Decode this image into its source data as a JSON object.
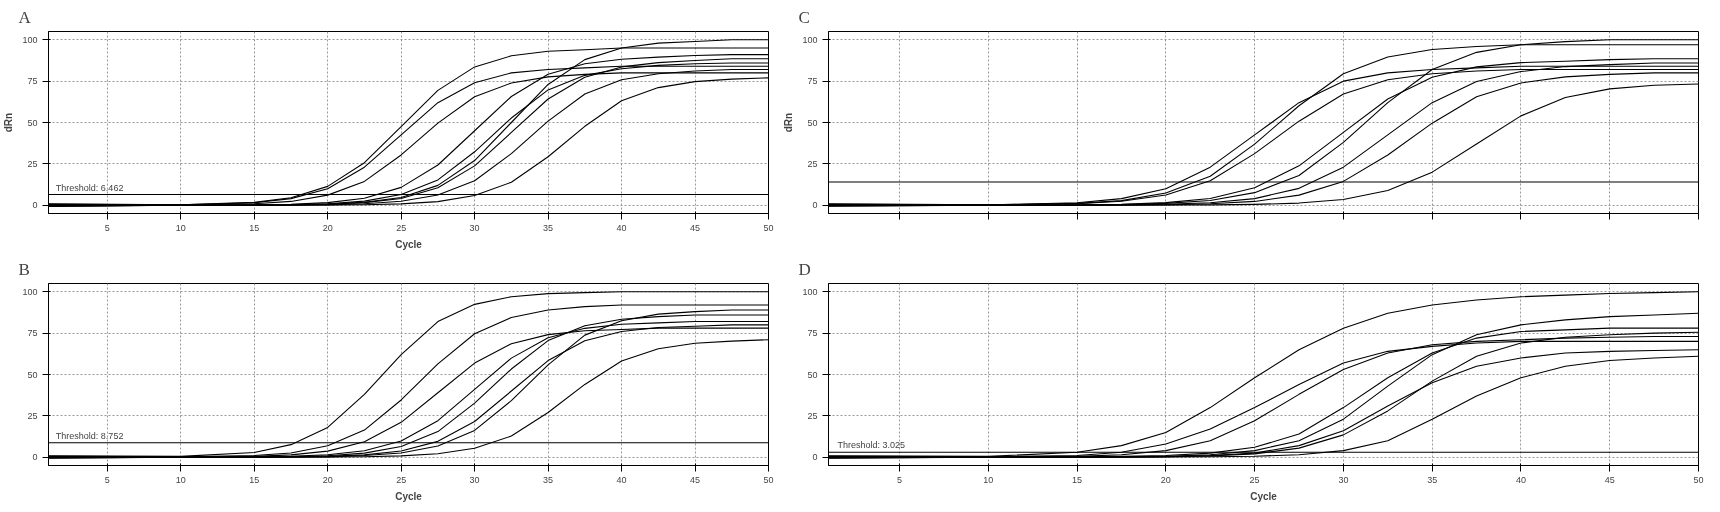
{
  "chart_data": [
    {
      "type": "line",
      "title": "A",
      "xlabel": "Cycle",
      "ylabel": "dRn",
      "grid": true,
      "line_style": "solid",
      "xlim": [
        1,
        50
      ],
      "ylim": [
        -5,
        105
      ],
      "xticks": [
        5,
        10,
        15,
        20,
        25,
        30,
        35,
        40,
        45,
        50
      ],
      "yticks": [
        0,
        25,
        50,
        75,
        100
      ],
      "ref_lines": [
        {
          "axis": "y",
          "value": 6.462,
          "label": "Threshold: 6.462"
        }
      ],
      "x": [
        1,
        10,
        15,
        17.5,
        20,
        22.5,
        25,
        27.5,
        30,
        32.5,
        35,
        37.5,
        40,
        42.5,
        45,
        47.5,
        50
      ],
      "series": [
        {
          "color": "#000000",
          "values": [
            0.8,
            0.2,
            1.7,
            4.5,
            11.4,
            25.7,
            47.5,
            69.4,
            83.6,
            90.3,
            93.1,
            94,
            95,
            95,
            95,
            95,
            95
          ]
        },
        {
          "color": "#000000",
          "values": [
            0.6,
            0.2,
            1.5,
            4,
            10,
            23,
            42.5,
            62,
            74,
            80,
            82,
            83,
            84,
            84,
            84,
            84,
            84
          ]
        },
        {
          "color": "#000000",
          "values": [
            0.4,
            0.1,
            0.9,
            2.3,
            6.1,
            14.4,
            30.4,
            49.6,
            65.6,
            73.9,
            77.6,
            79.1,
            80,
            80,
            80,
            80,
            80
          ]
        },
        {
          "color": "#000000",
          "values": [
            0.2,
            0,
            0.2,
            0.6,
            1.6,
            4.2,
            10.8,
            24.3,
            45,
            65.7,
            79.2,
            85.5,
            88.2,
            89.5,
            90.5,
            91,
            91
          ]
        },
        {
          "color": "#000000",
          "values": [
            0,
            0,
            0.1,
            0.4,
            0.9,
            2.5,
            6.5,
            15.3,
            32.3,
            52.7,
            69.7,
            78.5,
            82.5,
            84.5,
            85.5,
            86,
            86
          ]
        },
        {
          "color": "#000000",
          "values": [
            -0.2,
            0,
            0,
            0.2,
            0.6,
            1.6,
            4.1,
            10.6,
            23.8,
            44,
            64.2,
            77.4,
            83.6,
            86.2,
            87.5,
            88.5,
            88.5
          ]
        },
        {
          "color": "#000000",
          "values": [
            -0.4,
            0,
            0,
            0.1,
            0.2,
            0.9,
            2.4,
            6.2,
            14.8,
            31.2,
            50.8,
            67.2,
            75.8,
            79.5,
            81.1,
            82,
            82
          ]
        },
        {
          "color": "#000000",
          "values": [
            -0.6,
            0,
            0,
            0.2,
            0.7,
            1.8,
            4.7,
            12,
            27,
            50,
            73,
            88,
            95,
            98,
            99,
            100,
            100
          ]
        },
        {
          "color": "#000000",
          "values": [
            -0.8,
            0,
            0,
            0,
            0.1,
            0.3,
            0.8,
            2.2,
            5.9,
            13.9,
            29.3,
            47.7,
            63.1,
            71.1,
            74.7,
            76.2,
            77
          ]
        }
      ]
    },
    {
      "type": "line",
      "title": "C",
      "ylabel": "dRn",
      "grid": true,
      "line_style": "solid",
      "tick_labels": "y",
      "xlim": [
        1,
        50
      ],
      "ylim": [
        -5,
        105
      ],
      "xticks": [
        5,
        10,
        15,
        20,
        25,
        30,
        35,
        40,
        45,
        50
      ],
      "yticks": [
        0,
        25,
        50,
        75,
        100
      ],
      "ref_lines": [
        {
          "axis": "y",
          "value": 14,
          "label": null
        }
      ],
      "x": [
        1,
        10,
        15,
        17.5,
        20,
        22.5,
        25,
        27.5,
        30,
        32.5,
        35,
        37.5,
        40,
        42.5,
        45,
        47.5,
        50
      ],
      "series": [
        {
          "color": "#000000",
          "values": [
            0.8,
            0.2,
            1.1,
            2.8,
            7.4,
            17.5,
            36.9,
            60.1,
            79.5,
            89.6,
            94.1,
            95.9,
            97,
            97,
            97,
            97,
            97
          ]
        },
        {
          "color": "#000000",
          "values": [
            0.6,
            0.2,
            1.5,
            4,
            10,
            23,
            42.5,
            62,
            75,
            80,
            82,
            83,
            84,
            84,
            84,
            84,
            84
          ]
        },
        {
          "color": "#000000",
          "values": [
            0.4,
            0.1,
            0.9,
            2.4,
            6.2,
            14.8,
            31.2,
            50.8,
            67.2,
            75.8,
            79.5,
            81.1,
            82,
            82,
            82,
            82,
            82
          ]
        },
        {
          "color": "#000000",
          "values": [
            0.2,
            0,
            0.2,
            0.6,
            1.6,
            4.1,
            10.6,
            23.8,
            44,
            64.2,
            77.4,
            83.6,
            86.2,
            87,
            88,
            88.5,
            88.5
          ]
        },
        {
          "color": "#000000",
          "values": [
            0,
            0,
            0.1,
            0.4,
            1.1,
            2.9,
            7.6,
            18,
            38,
            62,
            82,
            92.4,
            97,
            98.9,
            100,
            100,
            100
          ]
        },
        {
          "color": "#000000",
          "values": [
            -0.2,
            0,
            0,
            0.2,
            0.6,
            1.5,
            4,
            10.2,
            23,
            42.5,
            62,
            74.8,
            80.8,
            83.8,
            85,
            86,
            86
          ]
        },
        {
          "color": "#000000",
          "values": [
            -0.4,
            0,
            0,
            0.1,
            0.2,
            0.9,
            2.3,
            6.1,
            14.4,
            30.4,
            49.6,
            65.6,
            73.9,
            77.6,
            79.1,
            80,
            80
          ]
        },
        {
          "color": "#000000",
          "values": [
            -0.6,
            0,
            0,
            0,
            0.1,
            0.2,
            0.5,
            1.3,
            3.5,
            8.9,
            20,
            37,
            54,
            65.1,
            70.3,
            72.5,
            73.3
          ]
        }
      ]
    },
    {
      "type": "line",
      "title": "B",
      "xlabel": "Cycle",
      "grid": true,
      "line_style": "solid",
      "xlim": [
        1,
        50
      ],
      "ylim": [
        -5,
        105
      ],
      "xticks": [
        5,
        10,
        15,
        20,
        25,
        30,
        35,
        40,
        45,
        50
      ],
      "yticks": [
        0,
        25,
        50,
        75,
        100
      ],
      "ref_lines": [
        {
          "axis": "y",
          "value": 8.752,
          "label": "Threshold: 8.752"
        }
      ],
      "x": [
        1,
        10,
        15,
        17.5,
        20,
        22.5,
        25,
        27.5,
        30,
        32.5,
        35,
        37.5,
        40,
        42.5,
        45,
        47.5,
        50
      ],
      "series": [
        {
          "color": "#000000",
          "values": [
            0.8,
            0.5,
            2.9,
            7.6,
            18,
            38,
            62,
            82,
            92.4,
            97,
            98.9,
            99.5,
            100,
            100,
            100,
            100,
            100
          ]
        },
        {
          "color": "#000000",
          "values": [
            0.6,
            0.3,
            1,
            2.6,
            6.9,
            16.4,
            34.6,
            56.4,
            74.6,
            84.5,
            89,
            91,
            92,
            92,
            92,
            92,
            92
          ]
        },
        {
          "color": "#000000",
          "values": [
            0.4,
            0.1,
            0.5,
            1.4,
            3.7,
            9.4,
            21.1,
            39,
            56.9,
            68.6,
            74.1,
            76.4,
            77.2,
            78,
            78,
            78,
            78
          ]
        },
        {
          "color": "#000000",
          "values": [
            0.2,
            0,
            0.2,
            0.6,
            1.5,
            3.9,
            9.8,
            22.1,
            41,
            59.9,
            72.2,
            77.9,
            80.4,
            81.2,
            82,
            82,
            82
          ]
        },
        {
          "color": "#000000",
          "values": [
            0,
            0,
            0.1,
            0.4,
            0.9,
            2.5,
            6.5,
            15.5,
            32.7,
            53.3,
            70.5,
            79.5,
            83.4,
            85,
            86,
            86,
            86
          ]
        },
        {
          "color": "#000000",
          "values": [
            -0.2,
            0,
            0,
            0.2,
            0.6,
            1.4,
            3.8,
            9.6,
            21.6,
            40,
            58.4,
            70.4,
            76,
            78.4,
            79.2,
            80,
            80
          ]
        },
        {
          "color": "#000000",
          "values": [
            -0.4,
            0,
            0,
            0.1,
            0.2,
            1,
            2.6,
            6.8,
            16.2,
            34.2,
            55.8,
            73.8,
            82.5,
            86.5,
            88,
            89,
            89
          ]
        },
        {
          "color": "#000000",
          "values": [
            -0.6,
            0,
            0,
            0,
            0.1,
            0.3,
            0.8,
            2.1,
            5.4,
            12.8,
            27,
            44,
            58.2,
            65.6,
            68.9,
            70.2,
            71
          ]
        }
      ]
    },
    {
      "type": "line",
      "title": "D",
      "xlabel": "Cycle",
      "grid": true,
      "line_style": "solid",
      "xlim": [
        1,
        50
      ],
      "ylim": [
        -5,
        105
      ],
      "xticks": [
        5,
        10,
        15,
        20,
        25,
        30,
        35,
        40,
        45,
        50
      ],
      "yticks": [
        0,
        25,
        50,
        75,
        100
      ],
      "ref_lines": [
        {
          "axis": "y",
          "value": 3.025,
          "label": "Threshold: 3.025"
        }
      ],
      "x": [
        1,
        10,
        15,
        17.5,
        20,
        22.5,
        25,
        27.5,
        30,
        32.5,
        35,
        37.5,
        40,
        42.5,
        45,
        47.5,
        50
      ],
      "series": [
        {
          "color": "#000000",
          "values": [
            0.8,
            0.5,
            3,
            7,
            15,
            30,
            48,
            65,
            78,
            87,
            92,
            95,
            97,
            98,
            99,
            99.5,
            100
          ]
        },
        {
          "color": "#000000",
          "values": [
            0.6,
            0.3,
            1,
            3,
            8,
            17,
            30,
            44,
            57,
            64,
            67,
            69,
            70,
            70,
            70,
            70,
            70
          ]
        },
        {
          "color": "#000000",
          "values": [
            0.4,
            0.1,
            0.5,
            1.5,
            4,
            10,
            22,
            38,
            53,
            63,
            68,
            70,
            71,
            72,
            72.5,
            73,
            73
          ]
        },
        {
          "color": "#000000",
          "values": [
            0.2,
            0,
            0.2,
            0.5,
            1,
            2.5,
            6,
            14,
            30,
            48,
            63,
            72,
            76,
            77,
            78,
            78,
            78
          ]
        },
        {
          "color": "#000000",
          "values": [
            0,
            0,
            0.1,
            0.2,
            0.5,
            1.5,
            4,
            10,
            23,
            43,
            62,
            74,
            80,
            83,
            85,
            86,
            87
          ]
        },
        {
          "color": "#000000",
          "values": [
            -0.2,
            0,
            0,
            0.1,
            0.3,
            0.8,
            2,
            5.5,
            13.5,
            28,
            46,
            61,
            69,
            72.5,
            74,
            75,
            75.5
          ]
        },
        {
          "color": "#000000",
          "values": [
            -0.4,
            0,
            0,
            0.1,
            0.3,
            1,
            2.5,
            7,
            16,
            31,
            45,
            55,
            60,
            63,
            64,
            64.5,
            65
          ]
        },
        {
          "color": "#000000",
          "values": [
            -0.6,
            0,
            0,
            0,
            0.1,
            0.3,
            0.6,
            1.5,
            4,
            10,
            23,
            37,
            48,
            55,
            58.5,
            60,
            61
          ]
        }
      ]
    }
  ]
}
